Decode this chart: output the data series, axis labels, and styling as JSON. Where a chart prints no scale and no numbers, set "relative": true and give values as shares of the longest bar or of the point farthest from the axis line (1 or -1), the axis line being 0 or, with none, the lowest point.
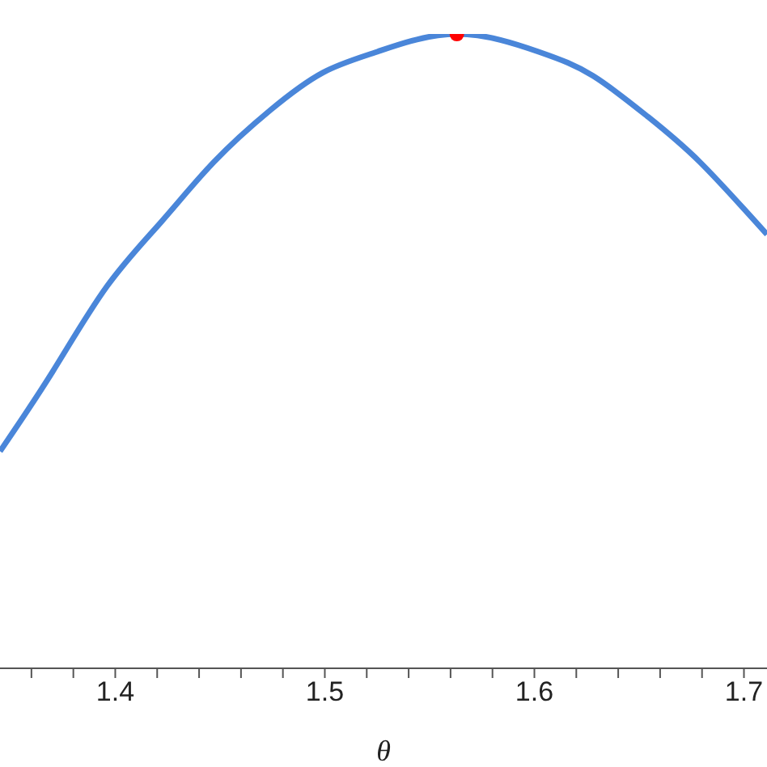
{
  "chart_data": {
    "type": "line",
    "xlabel": "θ",
    "relative": true,
    "xlim": [
      1.345,
      1.711
    ],
    "xticks": [
      {
        "value": 1.36,
        "label": null
      },
      {
        "value": 1.38,
        "label": null
      },
      1.4,
      {
        "value": 1.42,
        "label": null
      },
      {
        "value": 1.44,
        "label": null
      },
      {
        "value": 1.46,
        "label": null
      },
      {
        "value": 1.48,
        "label": null
      },
      1.5,
      {
        "value": 1.52,
        "label": null
      },
      {
        "value": 1.54,
        "label": null
      },
      {
        "value": 1.56,
        "label": null
      },
      {
        "value": 1.58,
        "label": null
      },
      1.6,
      {
        "value": 1.62,
        "label": null
      },
      {
        "value": 1.64,
        "label": null
      },
      {
        "value": 1.66,
        "label": null
      },
      {
        "value": 1.68,
        "label": null
      },
      1.7
    ],
    "series": [
      {
        "color": "#4a86d9",
        "x": [
          1.345,
          1.37,
          1.396,
          1.422,
          1.447,
          1.474,
          1.499,
          1.525,
          1.563,
          1.602,
          1.628,
          1.654,
          1.679,
          1.711
        ],
        "values": [
          0.342,
          0.467,
          0.602,
          0.704,
          0.798,
          0.88,
          0.939,
          0.972,
          1,
          0.972,
          0.934,
          0.87,
          0.798,
          0.684
        ],
        "marker": "none"
      },
      {
        "type": "scatter",
        "color": "#ff0000",
        "x": [
          1.563
        ],
        "values": [
          1
        ],
        "marker": "circle"
      }
    ]
  }
}
